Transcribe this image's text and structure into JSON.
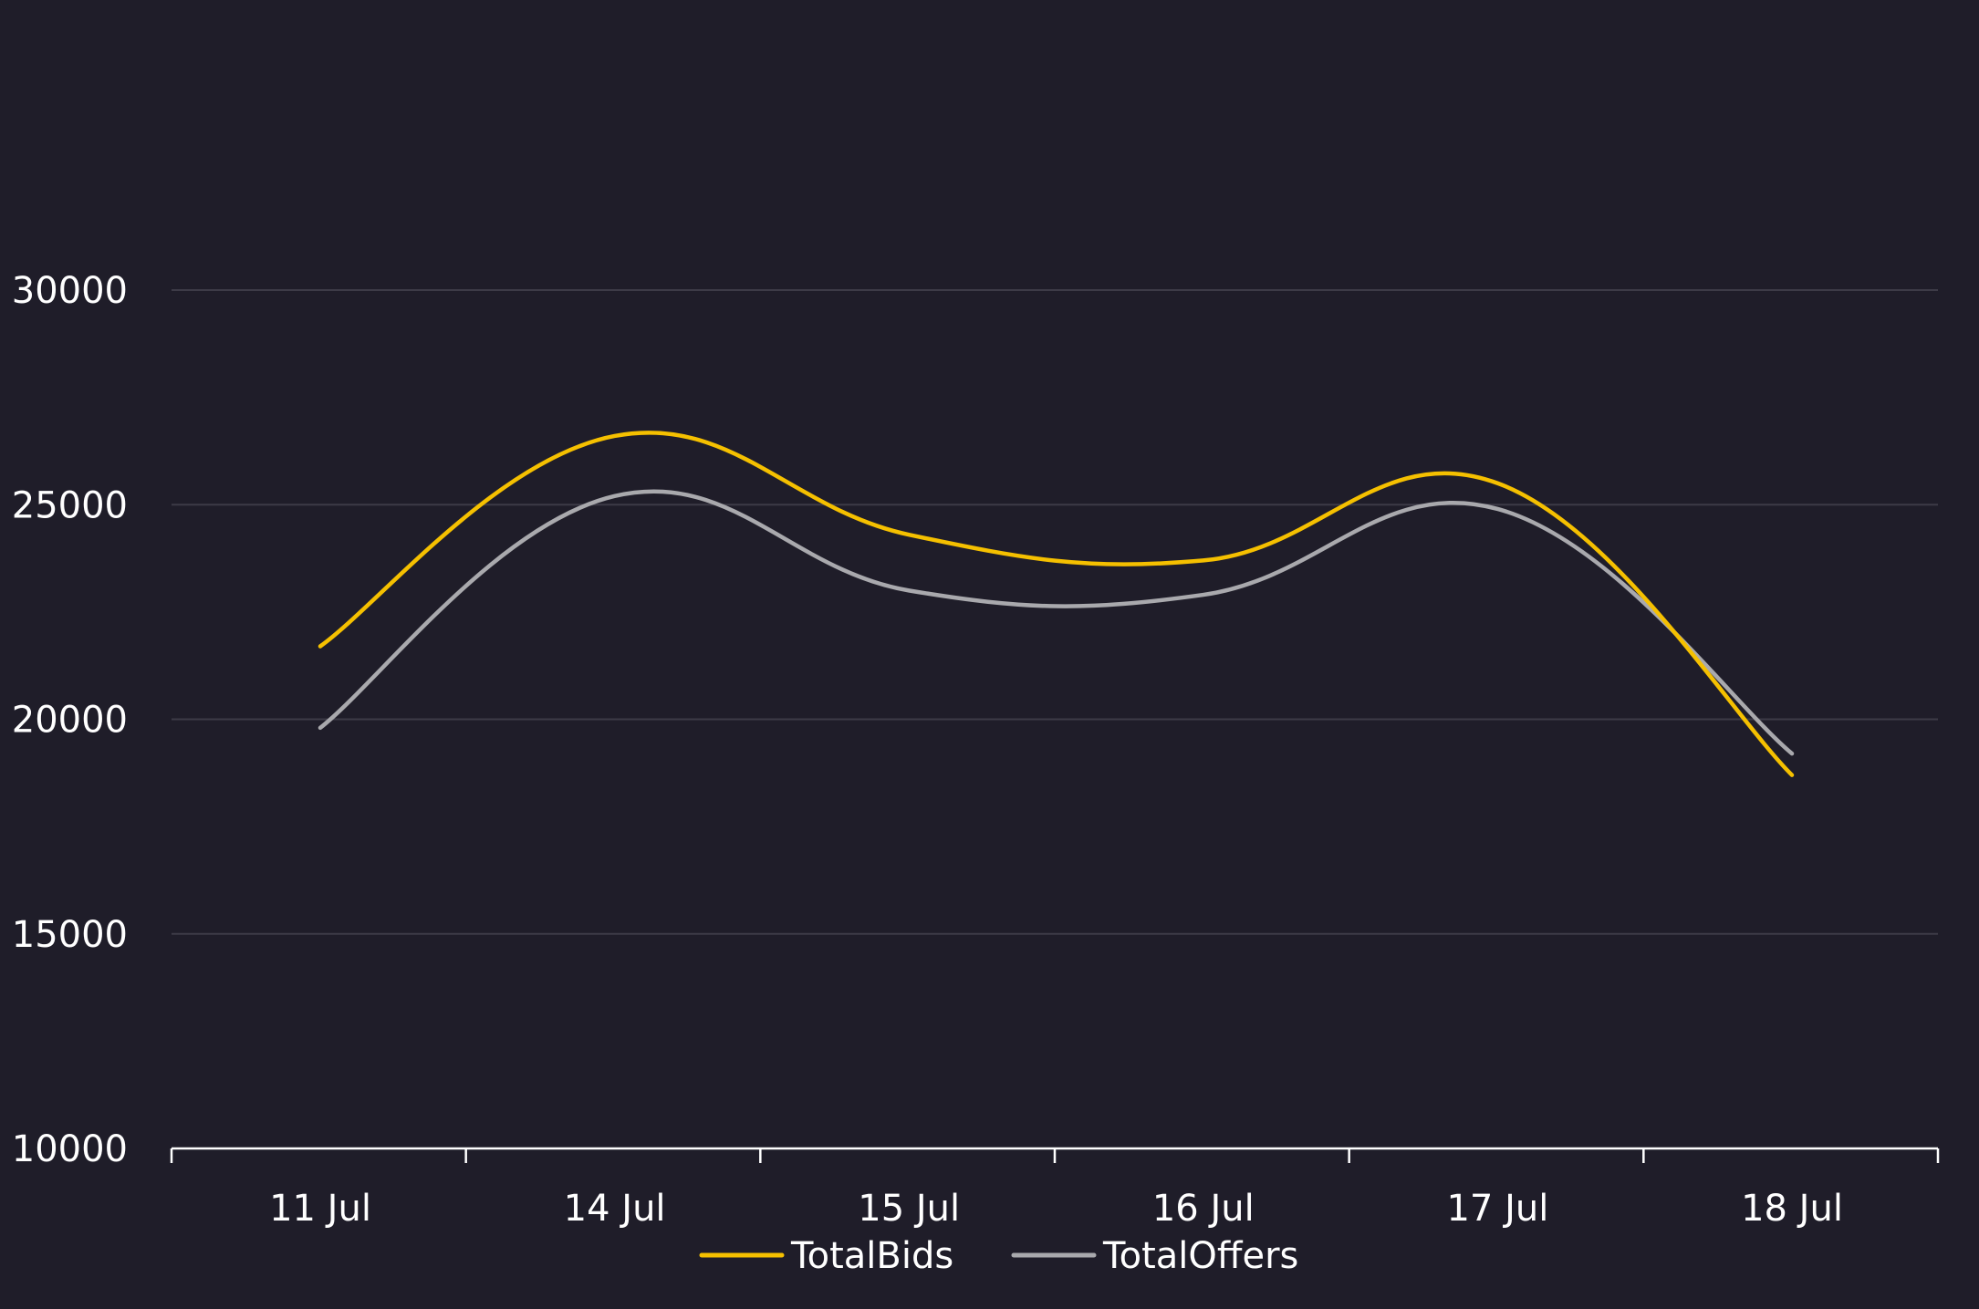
{
  "chart_data": {
    "type": "line",
    "title": "",
    "xlabel": "",
    "ylabel": "",
    "categories": [
      "11 Jul",
      "14 Jul",
      "15 Jul",
      "16 Jul",
      "17 Jul",
      "18 Jul"
    ],
    "ylim": [
      10000,
      30000
    ],
    "yticks": [
      10000,
      15000,
      20000,
      25000,
      30000
    ],
    "grid": "horizontal",
    "legend_position": "bottom",
    "series": [
      {
        "name": "TotalBids",
        "color": "#f5c000",
        "values": [
          21700,
          26600,
          24300,
          23700,
          25500,
          18700
        ]
      },
      {
        "name": "TotalOffers",
        "color": "#a9a9ad",
        "values": [
          19800,
          25200,
          23000,
          22900,
          24900,
          19200
        ]
      }
    ]
  }
}
